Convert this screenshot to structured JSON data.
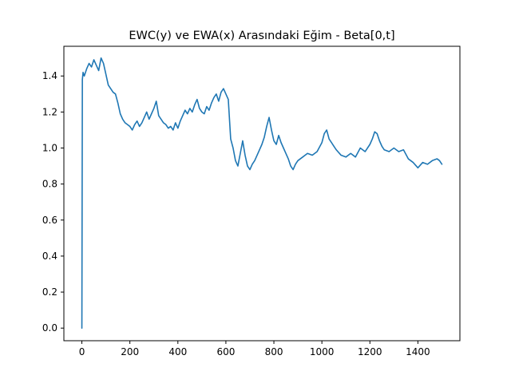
{
  "chart_data": {
    "type": "line",
    "title": "EWC(y) ve EWA(x) Arasındaki Eğim - Beta[0,t]",
    "xlabel": "",
    "ylabel": "",
    "xlim": [
      -75,
      1575
    ],
    "ylim": [
      -0.07,
      1.565
    ],
    "xticks": [
      0,
      200,
      400,
      600,
      800,
      1000,
      1200,
      1400
    ],
    "yticks": [
      0.0,
      0.2,
      0.4,
      0.6,
      0.8,
      1.0,
      1.2,
      1.4
    ],
    "xtick_labels": [
      "0",
      "200",
      "400",
      "600",
      "800",
      "1000",
      "1200",
      "1400"
    ],
    "ytick_labels": [
      "0.0",
      "0.2",
      "0.4",
      "0.6",
      "0.8",
      "1.0",
      "1.2",
      "1.4"
    ],
    "grid": false,
    "line_color": "#1f77b4",
    "series": [
      {
        "name": "",
        "x": [
          0,
          2,
          5,
          10,
          20,
          30,
          40,
          50,
          60,
          70,
          80,
          90,
          100,
          110,
          120,
          130,
          140,
          150,
          160,
          170,
          180,
          190,
          200,
          210,
          220,
          230,
          240,
          250,
          260,
          270,
          280,
          290,
          300,
          310,
          320,
          330,
          340,
          350,
          360,
          370,
          380,
          390,
          400,
          410,
          420,
          430,
          440,
          450,
          460,
          470,
          480,
          490,
          500,
          510,
          520,
          530,
          540,
          550,
          560,
          570,
          580,
          590,
          600,
          610,
          620,
          630,
          640,
          650,
          660,
          670,
          680,
          690,
          700,
          710,
          720,
          730,
          740,
          750,
          760,
          770,
          780,
          790,
          800,
          810,
          820,
          830,
          840,
          850,
          860,
          870,
          880,
          890,
          900,
          920,
          940,
          960,
          980,
          1000,
          1010,
          1020,
          1030,
          1040,
          1050,
          1060,
          1080,
          1100,
          1120,
          1140,
          1160,
          1180,
          1200,
          1210,
          1220,
          1230,
          1240,
          1250,
          1260,
          1280,
          1300,
          1320,
          1340,
          1360,
          1380,
          1400,
          1420,
          1440,
          1460,
          1480,
          1490,
          1500
        ],
        "values": [
          0.0,
          1.38,
          1.42,
          1.4,
          1.44,
          1.47,
          1.45,
          1.49,
          1.46,
          1.43,
          1.5,
          1.47,
          1.41,
          1.35,
          1.33,
          1.31,
          1.3,
          1.25,
          1.19,
          1.16,
          1.14,
          1.13,
          1.12,
          1.1,
          1.13,
          1.15,
          1.12,
          1.14,
          1.17,
          1.2,
          1.16,
          1.19,
          1.22,
          1.26,
          1.18,
          1.16,
          1.14,
          1.13,
          1.11,
          1.12,
          1.1,
          1.14,
          1.11,
          1.15,
          1.18,
          1.21,
          1.19,
          1.22,
          1.2,
          1.24,
          1.27,
          1.22,
          1.2,
          1.19,
          1.23,
          1.21,
          1.25,
          1.28,
          1.3,
          1.26,
          1.31,
          1.33,
          1.3,
          1.27,
          1.05,
          1.0,
          0.93,
          0.9,
          0.97,
          1.04,
          0.96,
          0.9,
          0.88,
          0.91,
          0.93,
          0.96,
          0.99,
          1.02,
          1.06,
          1.12,
          1.17,
          1.1,
          1.04,
          1.02,
          1.07,
          1.03,
          1.0,
          0.97,
          0.94,
          0.9,
          0.88,
          0.91,
          0.93,
          0.95,
          0.97,
          0.96,
          0.98,
          1.03,
          1.08,
          1.1,
          1.05,
          1.03,
          1.01,
          0.99,
          0.96,
          0.95,
          0.97,
          0.95,
          1.0,
          0.98,
          1.02,
          1.05,
          1.09,
          1.08,
          1.04,
          1.01,
          0.99,
          0.98,
          1.0,
          0.98,
          0.99,
          0.94,
          0.92,
          0.89,
          0.92,
          0.91,
          0.93,
          0.94,
          0.93,
          0.91
        ]
      }
    ]
  }
}
